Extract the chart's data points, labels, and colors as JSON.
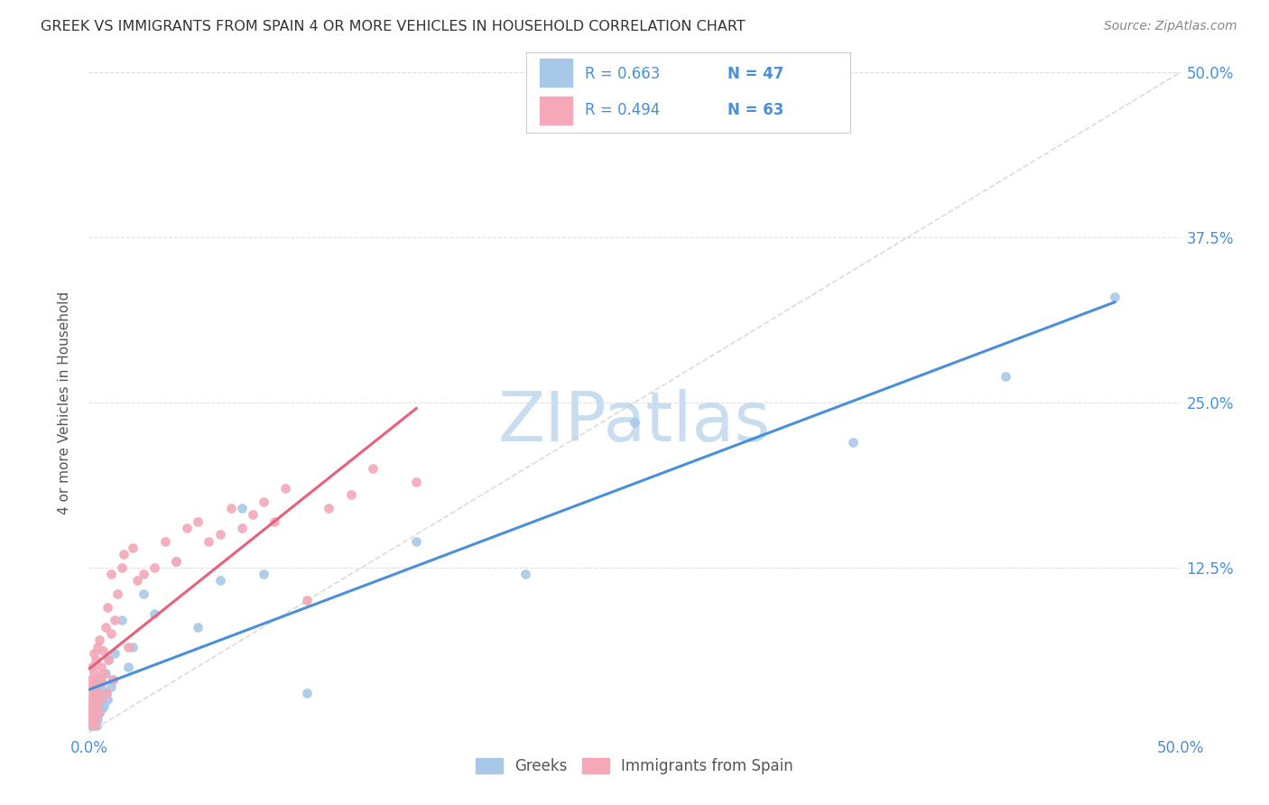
{
  "title": "GREEK VS IMMIGRANTS FROM SPAIN 4 OR MORE VEHICLES IN HOUSEHOLD CORRELATION CHART",
  "source": "Source: ZipAtlas.com",
  "ylabel": "4 or more Vehicles in Household",
  "ytick_labels": [
    "",
    "12.5%",
    "25.0%",
    "37.5%",
    "50.0%"
  ],
  "ytick_values": [
    0,
    12.5,
    25.0,
    37.5,
    50.0
  ],
  "xlim": [
    0,
    50
  ],
  "ylim": [
    0,
    50
  ],
  "legend_r_greek": "R = 0.663",
  "legend_n_greek": "N = 47",
  "legend_r_spain": "R = 0.494",
  "legend_n_spain": "N = 63",
  "legend_label_greek": "Greeks",
  "legend_label_spain": "Immigrants from Spain",
  "greek_color": "#a8c8e8",
  "spain_color": "#f4a8b8",
  "greek_line_color": "#4a90d9",
  "spain_line_color": "#e8607a",
  "diagonal_color": "#cccccc",
  "title_color": "#333333",
  "source_color": "#888888",
  "axis_tick_color": "#4a90d9",
  "legend_text_color": "#4a90d9",
  "ylabel_color": "#555555",
  "background_color": "#ffffff",
  "grid_color": "#e0e0e0",
  "watermark_text": "ZIPatlas",
  "watermark_color": "#c8ddf0",
  "greek_x": [
    0.05,
    0.08,
    0.1,
    0.12,
    0.15,
    0.18,
    0.2,
    0.22,
    0.25,
    0.28,
    0.3,
    0.32,
    0.35,
    0.38,
    0.4,
    0.42,
    0.45,
    0.48,
    0.5,
    0.55,
    0.6,
    0.65,
    0.7,
    0.75,
    0.8,
    0.85,
    0.9,
    1.0,
    1.1,
    1.2,
    1.5,
    1.8,
    2.0,
    2.5,
    3.0,
    4.0,
    5.0,
    6.0,
    7.0,
    8.0,
    10.0,
    15.0,
    20.0,
    25.0,
    35.0,
    42.0,
    47.0
  ],
  "greek_y": [
    0.8,
    1.2,
    0.5,
    1.8,
    1.0,
    2.2,
    1.5,
    0.8,
    2.5,
    1.2,
    3.0,
    1.8,
    0.5,
    2.8,
    1.0,
    2.0,
    3.5,
    1.5,
    4.0,
    2.5,
    1.8,
    3.2,
    2.0,
    4.5,
    3.0,
    2.5,
    5.5,
    3.5,
    4.0,
    6.0,
    8.5,
    5.0,
    6.5,
    10.5,
    9.0,
    13.0,
    8.0,
    11.5,
    17.0,
    12.0,
    3.0,
    14.5,
    12.0,
    23.5,
    22.0,
    27.0,
    33.0
  ],
  "spain_x": [
    0.05,
    0.07,
    0.08,
    0.1,
    0.12,
    0.13,
    0.15,
    0.15,
    0.18,
    0.2,
    0.22,
    0.22,
    0.25,
    0.25,
    0.28,
    0.3,
    0.3,
    0.32,
    0.35,
    0.35,
    0.38,
    0.4,
    0.42,
    0.45,
    0.48,
    0.5,
    0.55,
    0.6,
    0.65,
    0.7,
    0.75,
    0.8,
    0.85,
    0.9,
    1.0,
    1.0,
    1.1,
    1.2,
    1.3,
    1.5,
    1.6,
    1.8,
    2.0,
    2.2,
    2.5,
    3.0,
    3.5,
    4.0,
    4.5,
    5.0,
    5.5,
    6.0,
    6.5,
    7.0,
    7.5,
    8.0,
    8.5,
    9.0,
    10.0,
    11.0,
    12.0,
    13.0,
    15.0
  ],
  "spain_y": [
    2.5,
    0.8,
    3.5,
    1.5,
    4.0,
    0.8,
    2.0,
    5.0,
    3.0,
    1.2,
    4.5,
    0.5,
    2.8,
    6.0,
    1.8,
    3.5,
    0.8,
    5.5,
    2.2,
    4.0,
    3.0,
    6.5,
    1.5,
    4.2,
    7.0,
    2.5,
    5.0,
    3.8,
    6.2,
    4.5,
    8.0,
    3.0,
    9.5,
    5.5,
    7.5,
    12.0,
    4.0,
    8.5,
    10.5,
    12.5,
    13.5,
    6.5,
    14.0,
    11.5,
    12.0,
    12.5,
    14.5,
    13.0,
    15.5,
    16.0,
    14.5,
    15.0,
    17.0,
    15.5,
    16.5,
    17.5,
    16.0,
    18.5,
    10.0,
    17.0,
    18.0,
    20.0,
    19.0
  ]
}
